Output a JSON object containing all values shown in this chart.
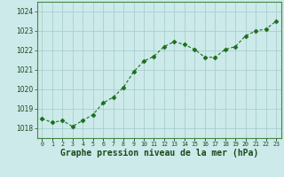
{
  "x": [
    0,
    1,
    2,
    3,
    4,
    5,
    6,
    7,
    8,
    9,
    10,
    11,
    12,
    13,
    14,
    15,
    16,
    17,
    18,
    19,
    20,
    21,
    22,
    23
  ],
  "y": [
    1018.5,
    1018.3,
    1018.4,
    1018.1,
    1018.4,
    1018.7,
    1019.3,
    1019.6,
    1020.1,
    1020.9,
    1021.45,
    1021.7,
    1022.2,
    1022.45,
    1022.3,
    1022.05,
    1021.65,
    1021.65,
    1022.05,
    1022.2,
    1022.75,
    1023.0,
    1023.1,
    1023.5
  ],
  "line_color": "#1a6e1a",
  "marker": "D",
  "marker_size": 2.5,
  "bg_color": "#cceaea",
  "grid_color": "#aacece",
  "xlabel": "Graphe pression niveau de la mer (hPa)",
  "xlabel_fontsize": 7,
  "ylim_min": 1017.5,
  "ylim_max": 1024.5,
  "ytick_interval": 1,
  "spine_color": "#448844"
}
